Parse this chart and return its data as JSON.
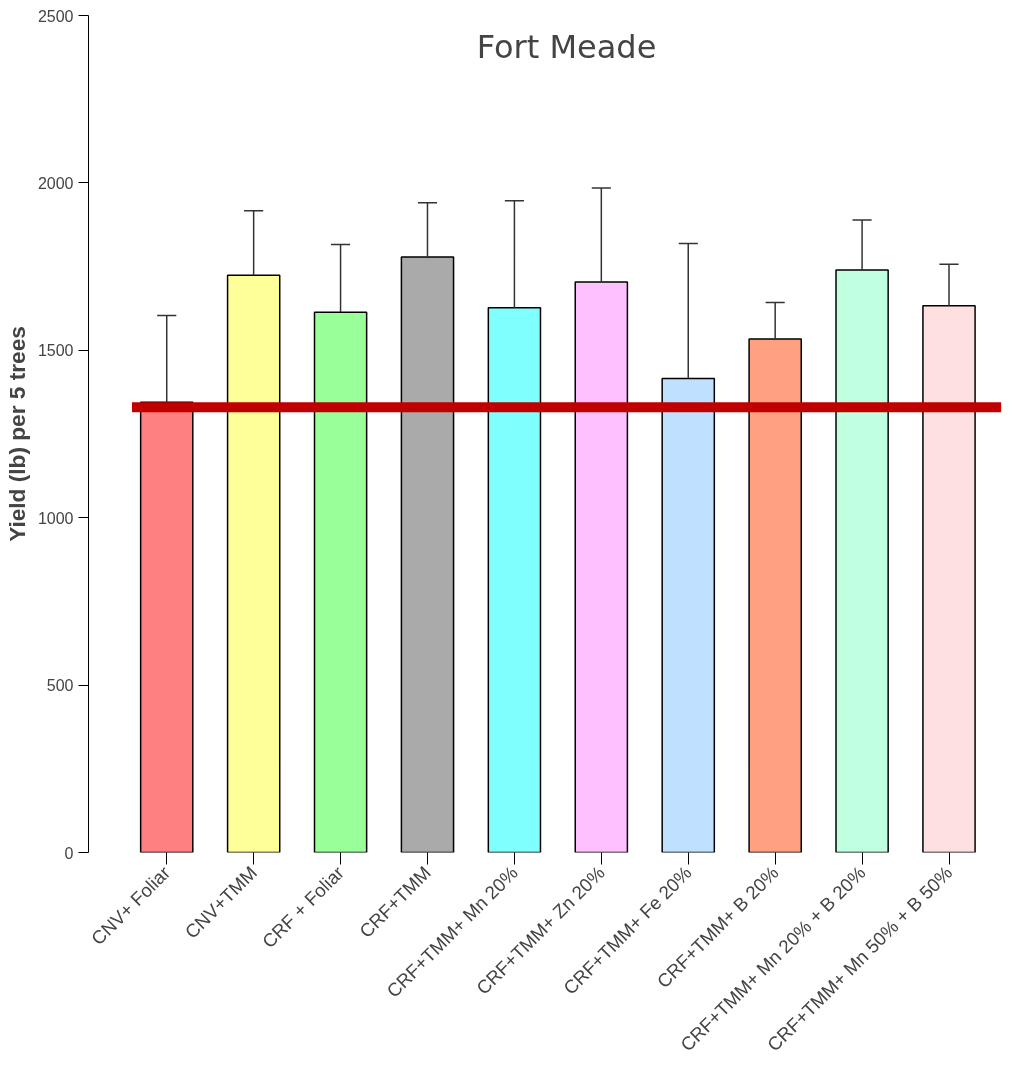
{
  "chart_data": {
    "type": "bar",
    "title": "Fort Meade",
    "ylabel": "Yield (lb) per 5 trees",
    "categories": [
      "CNV+ Foliar",
      "CNV+TMM",
      "CRF + Foliar",
      "CRF+TMM",
      "CRF+TMM+ Mn 20%",
      "CRF+TMM+ Zn 20%",
      "CRF+TMM+ Fe 20%",
      "CRF+TMM+ B 20%",
      "CRF+TMM+ Mn 20% + B 20%",
      "CRF+TMM+ Mn 50% + B 50%"
    ],
    "values": [
      1345,
      1724,
      1614,
      1779,
      1627,
      1704,
      1416,
      1534,
      1740,
      1633
    ],
    "colors": [
      "#ff8080",
      "#ffff99",
      "#99ff99",
      "#aaaaaa",
      "#80ffff",
      "#ffc0ff",
      "#c0e0ff",
      "#ffa080",
      "#c0ffe0",
      "#ffe0e0"
    ],
    "errors": [
      [
        1345,
        1604
      ],
      [
        1724,
        1917
      ],
      [
        1614,
        1816
      ],
      [
        1779,
        1941
      ],
      [
        1627,
        1947
      ],
      [
        1704,
        1985
      ],
      [
        1416,
        1819
      ],
      [
        1534,
        1643
      ],
      [
        1740,
        1889
      ],
      [
        1633,
        1757
      ]
    ],
    "ylim": [
      0,
      2500
    ],
    "yticks": [
      0,
      500,
      1000,
      1500,
      2000,
      2500
    ],
    "ref_lines": [
      {
        "axis": "y",
        "value": 1330,
        "color": "#c00000"
      }
    ],
    "grid": false
  }
}
